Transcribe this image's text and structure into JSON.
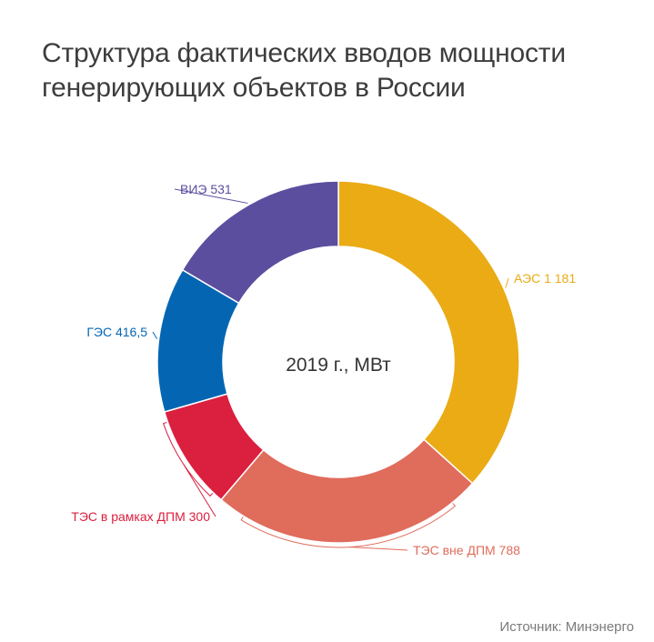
{
  "page": {
    "title_line1": "Структура фактических вводов мощности",
    "title_line2": "генерирующих объектов в России",
    "source": "Источник: Минэнерго"
  },
  "chart_data": {
    "type": "pie",
    "subtype": "donut",
    "center_label": "2019 г., МВт",
    "slices": [
      {
        "name": "АЭС",
        "value": 1181,
        "label": "АЭС 1 181",
        "color": "#eaab15"
      },
      {
        "name": "ТЭС вне ДПМ",
        "value": 788,
        "label": "ТЭС вне ДПМ 788",
        "color": "#e06c5c"
      },
      {
        "name": "ТЭС в рамках ДПМ",
        "value": 300,
        "label": "ТЭС в рамках ДПМ 300",
        "color": "#db1f3f"
      },
      {
        "name": "ГЭС",
        "value": 416.5,
        "label": "ГЭС 416,5",
        "color": "#0466b3"
      },
      {
        "name": "ВИЭ",
        "value": 531,
        "label": "ВИЭ 531",
        "color": "#5c4e9f"
      }
    ]
  }
}
